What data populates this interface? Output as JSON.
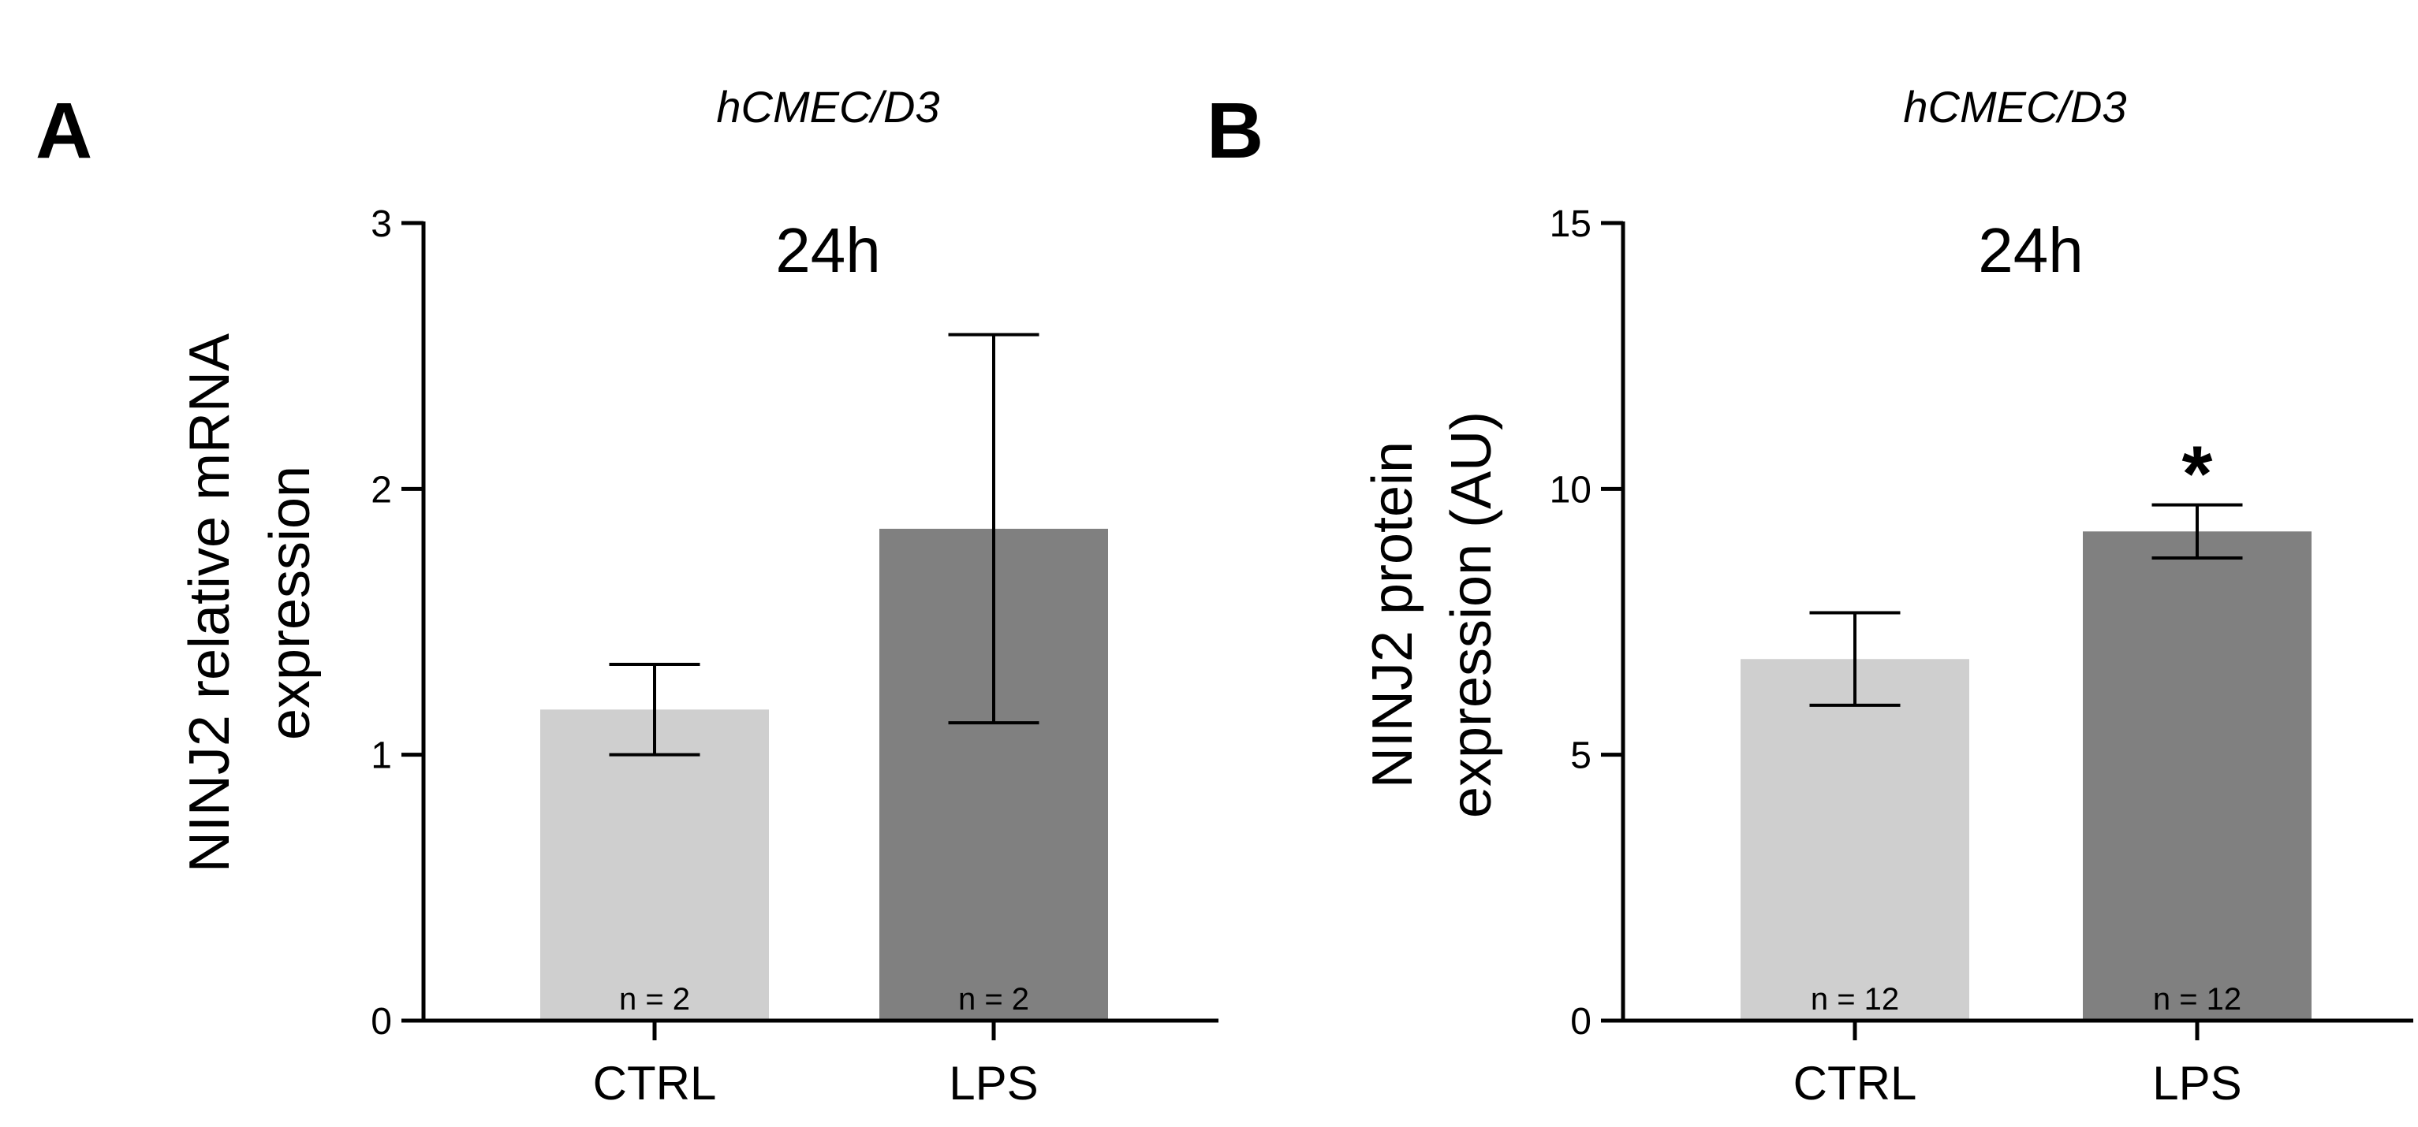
{
  "chart_data": [
    {
      "type": "bar",
      "panel": "A",
      "cell_line": "hCMEC/D3",
      "title": "24h",
      "ylabel_lines": [
        "NINJ2 relative mRNA",
        "expression"
      ],
      "xlabel": "",
      "ylim": [
        0,
        3
      ],
      "yticks": [
        0,
        1,
        2,
        3
      ],
      "categories": [
        "CTRL",
        "LPS"
      ],
      "values": [
        1.17,
        1.85
      ],
      "error": [
        0.17,
        0.73
      ],
      "n_labels": [
        "n = 2",
        "n = 2"
      ],
      "significance": [
        "",
        ""
      ],
      "colors": [
        "#cfcfcf",
        "#808080"
      ]
    },
    {
      "type": "bar",
      "panel": "B",
      "cell_line": "hCMEC/D3",
      "title": "24h",
      "ylabel_lines": [
        "NINJ2 protein",
        "expression (AU)"
      ],
      "xlabel": "",
      "ylim": [
        0,
        15
      ],
      "yticks": [
        0,
        5,
        10,
        15
      ],
      "categories": [
        "CTRL",
        "LPS"
      ],
      "values": [
        6.8,
        9.2
      ],
      "error": [
        0.87,
        0.5
      ],
      "n_labels": [
        "n = 12",
        "n = 12"
      ],
      "significance": [
        "",
        "*"
      ],
      "colors": [
        "#cfcfcf",
        "#808080"
      ]
    }
  ]
}
